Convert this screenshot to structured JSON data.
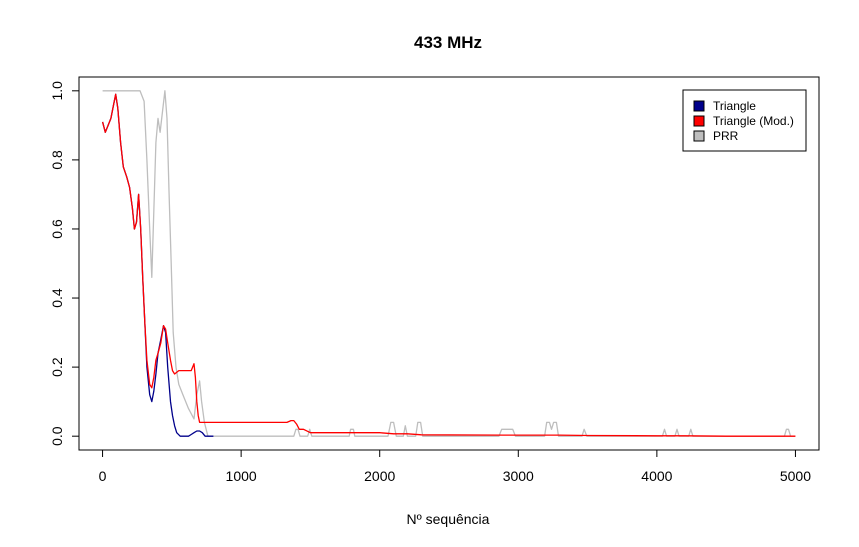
{
  "chart_data": {
    "type": "line",
    "title": "433 MHz",
    "xlabel": "Nº sequência",
    "ylabel": "",
    "xlim": [
      -170,
      5170
    ],
    "ylim": [
      -0.04,
      1.04
    ],
    "x_ticks": [
      0,
      1000,
      2000,
      3000,
      4000,
      5000
    ],
    "y_ticks": [
      "0.0",
      "0.2",
      "0.4",
      "0.6",
      "0.8",
      "1.0"
    ],
    "grid": false,
    "legend_position": "top-right",
    "series": [
      {
        "name": "PRR",
        "color": "#bebebe",
        "points": [
          [
            0,
            1.0
          ],
          [
            270,
            1.0
          ],
          [
            300,
            0.97
          ],
          [
            320,
            0.8
          ],
          [
            340,
            0.6
          ],
          [
            355,
            0.46
          ],
          [
            370,
            0.65
          ],
          [
            385,
            0.85
          ],
          [
            400,
            0.92
          ],
          [
            415,
            0.88
          ],
          [
            430,
            0.93
          ],
          [
            450,
            1.0
          ],
          [
            465,
            0.92
          ],
          [
            480,
            0.7
          ],
          [
            495,
            0.5
          ],
          [
            510,
            0.3
          ],
          [
            530,
            0.2
          ],
          [
            550,
            0.15
          ],
          [
            580,
            0.12
          ],
          [
            620,
            0.08
          ],
          [
            660,
            0.05
          ],
          [
            680,
            0.12
          ],
          [
            700,
            0.16
          ],
          [
            715,
            0.1
          ],
          [
            735,
            0.04
          ],
          [
            760,
            0.0
          ],
          [
            1380,
            0.0
          ],
          [
            1395,
            0.02
          ],
          [
            1410,
            0.02
          ],
          [
            1425,
            0.0
          ],
          [
            1480,
            0.0
          ],
          [
            1495,
            0.02
          ],
          [
            1510,
            0.0
          ],
          [
            1780,
            0.0
          ],
          [
            1790,
            0.02
          ],
          [
            1810,
            0.02
          ],
          [
            1820,
            0.0
          ],
          [
            2060,
            0.0
          ],
          [
            2080,
            0.04
          ],
          [
            2100,
            0.04
          ],
          [
            2120,
            0.0
          ],
          [
            2170,
            0.0
          ],
          [
            2185,
            0.03
          ],
          [
            2200,
            0.0
          ],
          [
            2260,
            0.0
          ],
          [
            2275,
            0.04
          ],
          [
            2295,
            0.04
          ],
          [
            2310,
            0.0
          ],
          [
            2860,
            0.0
          ],
          [
            2880,
            0.02
          ],
          [
            2960,
            0.02
          ],
          [
            2980,
            0.0
          ],
          [
            3190,
            0.0
          ],
          [
            3205,
            0.04
          ],
          [
            3225,
            0.04
          ],
          [
            3240,
            0.02
          ],
          [
            3255,
            0.04
          ],
          [
            3275,
            0.04
          ],
          [
            3290,
            0.0
          ],
          [
            3460,
            0.0
          ],
          [
            3475,
            0.02
          ],
          [
            3495,
            0.0
          ],
          [
            4040,
            0.0
          ],
          [
            4055,
            0.02
          ],
          [
            4070,
            0.0
          ],
          [
            4130,
            0.0
          ],
          [
            4145,
            0.02
          ],
          [
            4160,
            0.0
          ],
          [
            4230,
            0.0
          ],
          [
            4245,
            0.02
          ],
          [
            4260,
            0.0
          ],
          [
            4920,
            0.0
          ],
          [
            4935,
            0.02
          ],
          [
            4950,
            0.02
          ],
          [
            4965,
            0.0
          ],
          [
            5000,
            0.0
          ]
        ]
      },
      {
        "name": "Triangle",
        "color": "#00008b",
        "points": [
          [
            0,
            0.91
          ],
          [
            20,
            0.88
          ],
          [
            40,
            0.9
          ],
          [
            60,
            0.92
          ],
          [
            80,
            0.96
          ],
          [
            95,
            0.99
          ],
          [
            110,
            0.95
          ],
          [
            130,
            0.85
          ],
          [
            150,
            0.78
          ],
          [
            175,
            0.75
          ],
          [
            195,
            0.72
          ],
          [
            215,
            0.66
          ],
          [
            230,
            0.6
          ],
          [
            245,
            0.62
          ],
          [
            260,
            0.7
          ],
          [
            275,
            0.6
          ],
          [
            290,
            0.46
          ],
          [
            305,
            0.33
          ],
          [
            320,
            0.2
          ],
          [
            340,
            0.12
          ],
          [
            355,
            0.1
          ],
          [
            370,
            0.13
          ],
          [
            385,
            0.18
          ],
          [
            400,
            0.24
          ],
          [
            420,
            0.28
          ],
          [
            440,
            0.32
          ],
          [
            455,
            0.3
          ],
          [
            470,
            0.2
          ],
          [
            490,
            0.1
          ],
          [
            505,
            0.06
          ],
          [
            520,
            0.03
          ],
          [
            535,
            0.01
          ],
          [
            560,
            0.0
          ],
          [
            620,
            0.0
          ],
          [
            640,
            0.005
          ],
          [
            660,
            0.01
          ],
          [
            680,
            0.015
          ],
          [
            700,
            0.015
          ],
          [
            720,
            0.01
          ],
          [
            740,
            0.0
          ],
          [
            800,
            0.0
          ]
        ]
      },
      {
        "name": "Triangle (Mod.)",
        "color": "#ff0000",
        "points": [
          [
            0,
            0.91
          ],
          [
            20,
            0.88
          ],
          [
            40,
            0.9
          ],
          [
            60,
            0.92
          ],
          [
            80,
            0.96
          ],
          [
            95,
            0.99
          ],
          [
            110,
            0.95
          ],
          [
            130,
            0.85
          ],
          [
            150,
            0.78
          ],
          [
            175,
            0.75
          ],
          [
            195,
            0.72
          ],
          [
            215,
            0.66
          ],
          [
            230,
            0.6
          ],
          [
            245,
            0.62
          ],
          [
            260,
            0.7
          ],
          [
            275,
            0.6
          ],
          [
            290,
            0.46
          ],
          [
            305,
            0.33
          ],
          [
            320,
            0.22
          ],
          [
            340,
            0.15
          ],
          [
            355,
            0.14
          ],
          [
            370,
            0.17
          ],
          [
            385,
            0.22
          ],
          [
            400,
            0.24
          ],
          [
            420,
            0.27
          ],
          [
            440,
            0.32
          ],
          [
            455,
            0.31
          ],
          [
            470,
            0.27
          ],
          [
            490,
            0.22
          ],
          [
            505,
            0.19
          ],
          [
            520,
            0.18
          ],
          [
            550,
            0.19
          ],
          [
            580,
            0.19
          ],
          [
            610,
            0.19
          ],
          [
            640,
            0.19
          ],
          [
            660,
            0.21
          ],
          [
            670,
            0.17
          ],
          [
            680,
            0.1
          ],
          [
            690,
            0.06
          ],
          [
            700,
            0.04
          ],
          [
            1330,
            0.04
          ],
          [
            1360,
            0.045
          ],
          [
            1380,
            0.045
          ],
          [
            1400,
            0.035
          ],
          [
            1420,
            0.02
          ],
          [
            1450,
            0.02
          ],
          [
            1500,
            0.01
          ],
          [
            2000,
            0.01
          ],
          [
            2100,
            0.007
          ],
          [
            2200,
            0.007
          ],
          [
            2300,
            0.004
          ],
          [
            2900,
            0.003
          ],
          [
            3200,
            0.003
          ],
          [
            3300,
            0.003
          ],
          [
            3500,
            0.002
          ],
          [
            4000,
            0.001
          ],
          [
            4200,
            0.001
          ],
          [
            4500,
            0.0
          ],
          [
            5000,
            0.0
          ]
        ]
      }
    ],
    "legend": [
      "Triangle",
      "Triangle (Mod.)",
      "PRR"
    ]
  }
}
